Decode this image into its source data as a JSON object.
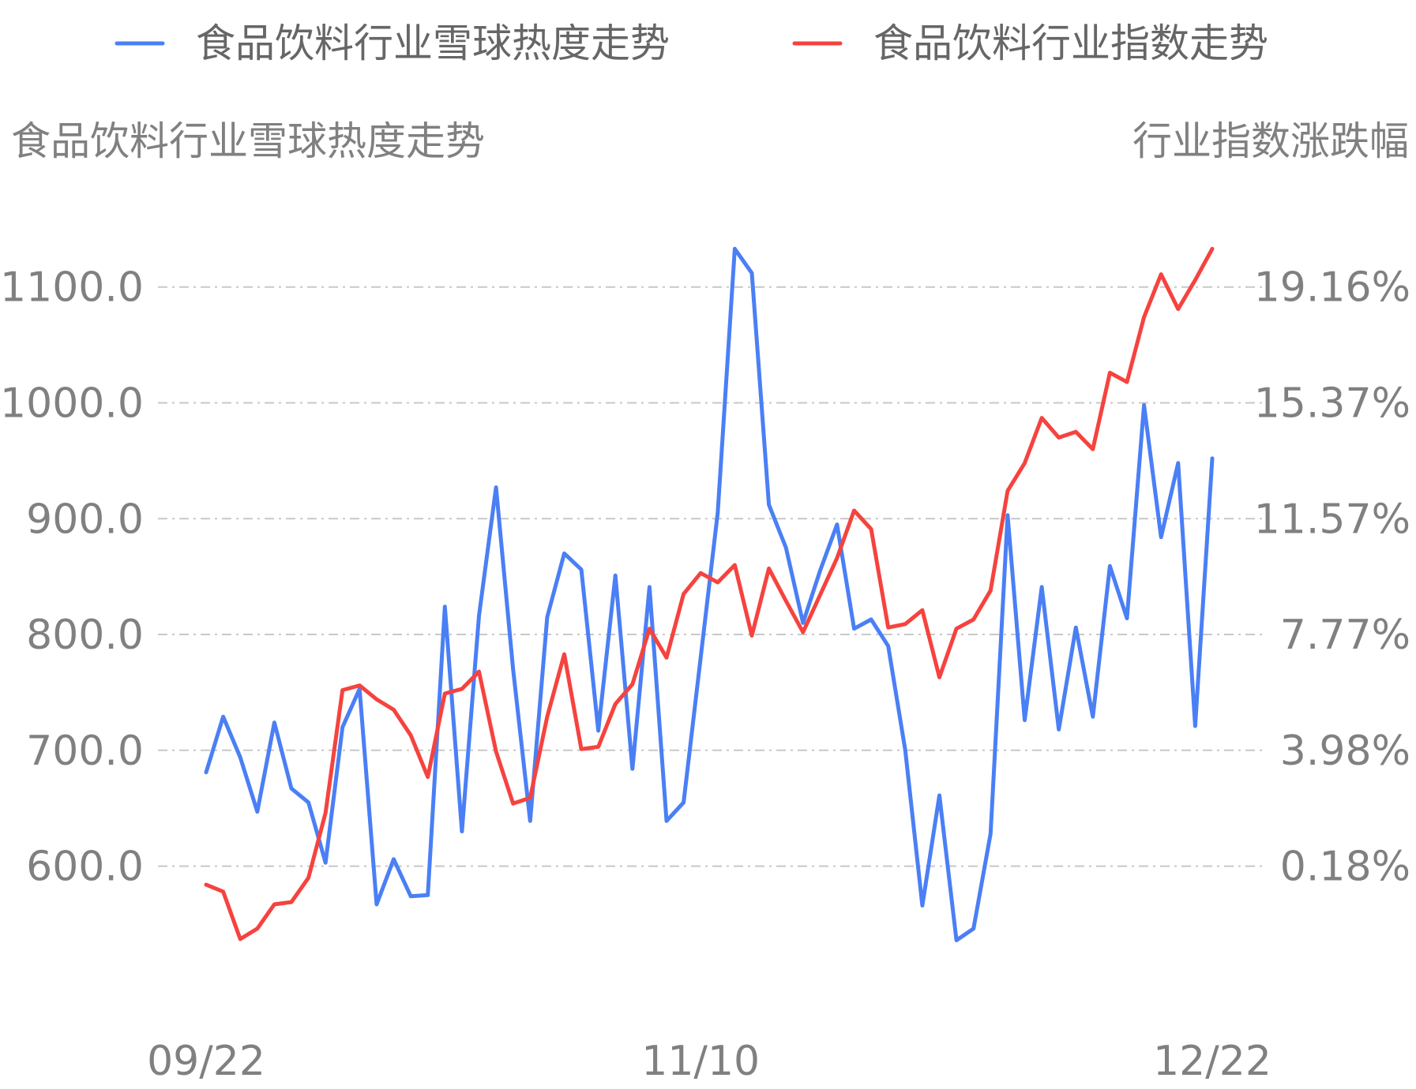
{
  "chart_data": {
    "type": "line",
    "legend": [
      "食品饮料行业雪球热度走势",
      "食品饮料行业指数走势"
    ],
    "legend_position": "top",
    "y_left_title": "食品饮料行业雪球热度走势",
    "y_right_title": "行业指数涨跌幅",
    "y_left_ticks": [
      "1100.0",
      "1000.0",
      "900.0",
      "800.0",
      "700.0",
      "600.0"
    ],
    "y_right_ticks": [
      "19.16%",
      "15.37%",
      "11.57%",
      "7.77%",
      "3.98%",
      "0.18%"
    ],
    "y_left_range": [
      520,
      1140
    ],
    "x_ticks": [
      {
        "label": "09/22",
        "index": 0
      },
      {
        "label": "11/10",
        "index": 29
      },
      {
        "label": "12/22",
        "index": 59
      }
    ],
    "grid": "horizontal-dashed",
    "series": [
      {
        "name": "食品饮料行业雪球热度走势",
        "axis": "left",
        "color": "#4a7ff5",
        "values": [
          681,
          729,
          694,
          647,
          724,
          667,
          655,
          603,
          720,
          753,
          567,
          606,
          574,
          575,
          824,
          630,
          816,
          927,
          770,
          639,
          815,
          870,
          856,
          717,
          851,
          684,
          841,
          639,
          655,
          780,
          905,
          1133,
          1112,
          912,
          875,
          810,
          855,
          895,
          805,
          813,
          790,
          700,
          566,
          661,
          536,
          546,
          628,
          903,
          726,
          841,
          718,
          806,
          729,
          859,
          814,
          998,
          884,
          948,
          721,
          952
        ]
      },
      {
        "name": "食品饮料行业指数走势",
        "axis": "left",
        "color": "#f5433f",
        "values": [
          584,
          578,
          537,
          546,
          567,
          569,
          590,
          646,
          752,
          756,
          744,
          735,
          713,
          677,
          749,
          753,
          768,
          699,
          654,
          659,
          729,
          783,
          701,
          703,
          740,
          757,
          805,
          780,
          835,
          853,
          845,
          860,
          799,
          857,
          829,
          802,
          834,
          866,
          907,
          891,
          806,
          809,
          821,
          763,
          805,
          813,
          838,
          924,
          948,
          987,
          970,
          975,
          960,
          1026,
          1018,
          1074,
          1111,
          1081,
          1106,
          1133
        ]
      }
    ]
  }
}
